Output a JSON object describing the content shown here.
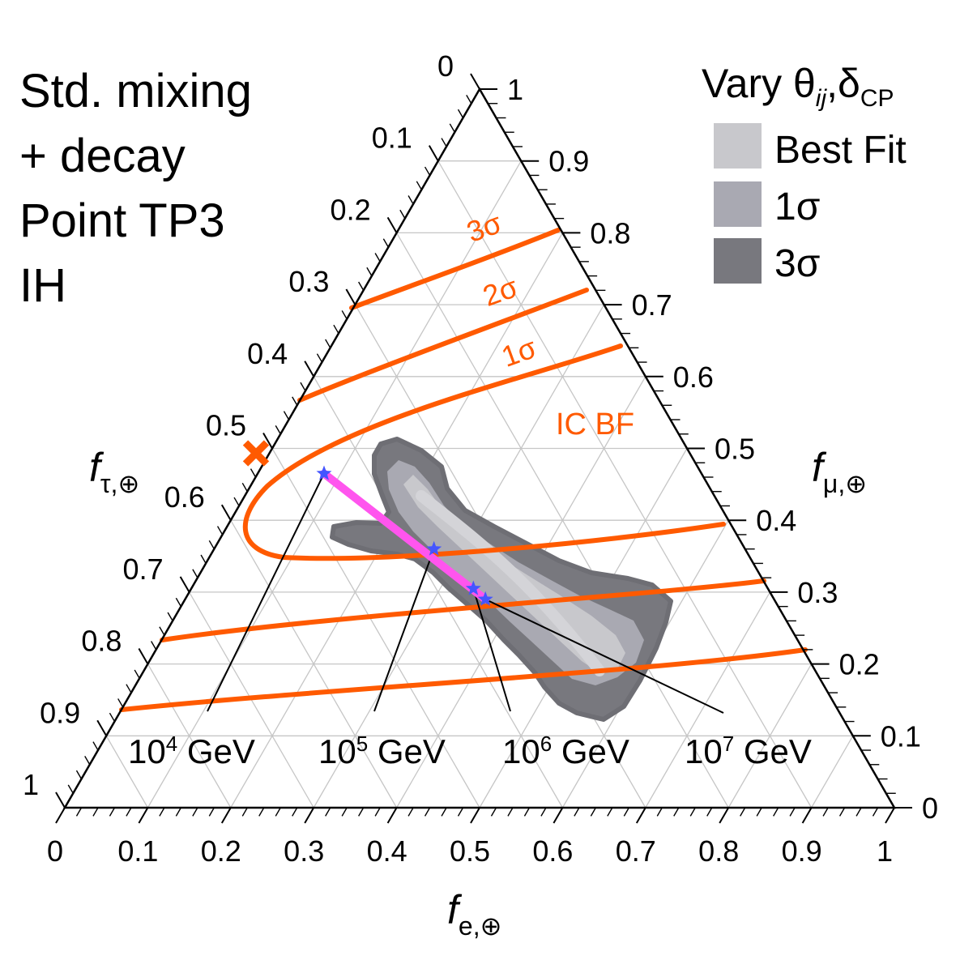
{
  "chart_data": {
    "type": "ternary",
    "title_lines": [
      "Std. mixing",
      "+ decay",
      "Point TP3",
      "IH"
    ],
    "axes": {
      "bottom": {
        "label_main": "f",
        "label_sub": "e,⊕"
      },
      "right": {
        "label_main": "f",
        "label_sub": "μ,⊕"
      },
      "left": {
        "label_main": "f",
        "label_sub": "τ,⊕"
      }
    },
    "tick_labels": [
      "0",
      "0.1",
      "0.2",
      "0.3",
      "0.4",
      "0.5",
      "0.6",
      "0.7",
      "0.8",
      "0.9",
      "1"
    ],
    "legend": {
      "title_main": "Vary θ",
      "title_ij": "ij",
      "title_sep": ",δ",
      "title_sub": "CP",
      "entries": [
        {
          "label": "Best Fit",
          "color": "#c8c8cc"
        },
        {
          "label": "1σ",
          "color": "#a9a9b2"
        },
        {
          "label": "3σ",
          "color": "#78787e"
        }
      ]
    },
    "ic_contours": [
      {
        "label": "1σ",
        "color": "#ff5a00"
      },
      {
        "label": "2σ",
        "color": "#ff5a00"
      },
      {
        "label": "3σ",
        "color": "#ff5a00"
      }
    ],
    "ic_best_fit": {
      "label": "IC BF",
      "fe": 0.0,
      "fmu": 0.5,
      "color": "#ff5a00"
    },
    "decay_trajectory": {
      "color": "#ff55ee",
      "star_color": "#4455ff",
      "points": [
        {
          "label_base": "10",
          "label_exp": "4",
          "label_unit": "GeV",
          "fe": 0.08,
          "fmu": 0.465
        },
        {
          "label_base": "10",
          "label_exp": "5",
          "label_unit": "GeV",
          "fe": 0.265,
          "fmu": 0.36
        },
        {
          "label_base": "10",
          "label_exp": "6",
          "label_unit": "GeV",
          "fe": 0.34,
          "fmu": 0.305
        },
        {
          "label_base": "10",
          "label_exp": "7",
          "label_unit": "GeV",
          "fe": 0.362,
          "fmu": 0.29
        }
      ]
    }
  }
}
